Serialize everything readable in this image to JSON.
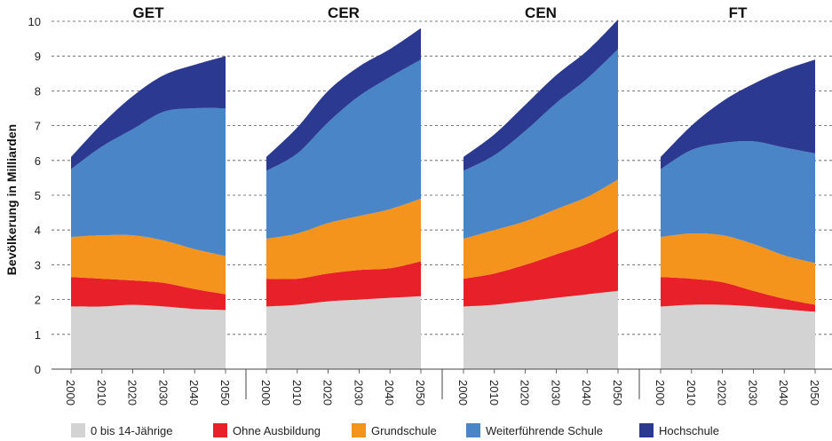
{
  "chart_data": {
    "type": "area",
    "ylabel": "Bevölkerung in Milliarden",
    "ylim": [
      0,
      10
    ],
    "yticks": [
      "0",
      "1",
      "2",
      "3",
      "4",
      "5",
      "6",
      "7",
      "8",
      "9",
      "10"
    ],
    "x": [
      "2000",
      "2010",
      "2020",
      "2030",
      "2040",
      "2050"
    ],
    "stacked": true,
    "grid": "horizontal dashed",
    "legend_position": "bottom",
    "series_names": [
      "0 bis 14-Jährige",
      "Ohne Ausbildung",
      "Grundschule",
      "Weiterführende Schule",
      "Hochschule"
    ],
    "colors": [
      "#d3d3d3",
      "#e8202a",
      "#f5941d",
      "#4a86c7",
      "#2b3990"
    ],
    "panels": [
      {
        "title": "GET",
        "series": [
          {
            "name": "0 bis 14-Jährige",
            "values": [
              1.8,
              1.8,
              1.85,
              1.8,
              1.73,
              1.7
            ]
          },
          {
            "name": "Ohne Ausbildung",
            "values": [
              0.85,
              0.8,
              0.7,
              0.68,
              0.57,
              0.45
            ]
          },
          {
            "name": "Grundschule",
            "values": [
              1.15,
              1.25,
              1.3,
              1.22,
              1.15,
              1.1
            ]
          },
          {
            "name": "Weiterführende Schule",
            "values": [
              1.95,
              2.55,
              3.05,
              3.7,
              4.05,
              4.25
            ]
          },
          {
            "name": "Hochschule",
            "values": [
              0.35,
              0.65,
              0.95,
              1.05,
              1.25,
              1.5
            ]
          }
        ]
      },
      {
        "title": "CER",
        "series": [
          {
            "name": "0 bis 14-Jährige",
            "values": [
              1.8,
              1.85,
              1.95,
              2.0,
              2.05,
              2.1
            ]
          },
          {
            "name": "Ohne Ausbildung",
            "values": [
              0.8,
              0.75,
              0.8,
              0.85,
              0.85,
              1.0
            ]
          },
          {
            "name": "Grundschule",
            "values": [
              1.15,
              1.3,
              1.45,
              1.55,
              1.7,
              1.8
            ]
          },
          {
            "name": "Weiterführende Schule",
            "values": [
              1.95,
              2.3,
              2.9,
              3.45,
              3.8,
              4.0
            ]
          },
          {
            "name": "Hochschule",
            "values": [
              0.4,
              0.75,
              0.9,
              0.85,
              0.8,
              0.9
            ]
          }
        ]
      },
      {
        "title": "CEN",
        "series": [
          {
            "name": "0 bis 14-Jährige",
            "values": [
              1.8,
              1.85,
              1.95,
              2.05,
              2.15,
              2.25
            ]
          },
          {
            "name": "Ohne Ausbildung",
            "values": [
              0.8,
              0.9,
              1.05,
              1.25,
              1.45,
              1.75
            ]
          },
          {
            "name": "Grundschule",
            "values": [
              1.15,
              1.25,
              1.25,
              1.3,
              1.35,
              1.45
            ]
          },
          {
            "name": "Weiterführende Schule",
            "values": [
              1.95,
              2.15,
              2.6,
              3.05,
              3.4,
              3.75
            ]
          },
          {
            "name": "Hochschule",
            "values": [
              0.4,
              0.6,
              0.75,
              0.8,
              0.8,
              0.85
            ]
          }
        ]
      },
      {
        "title": "FT",
        "series": [
          {
            "name": "0 bis 14-Jährige",
            "values": [
              1.8,
              1.85,
              1.85,
              1.8,
              1.72,
              1.65
            ]
          },
          {
            "name": "Ohne Ausbildung",
            "values": [
              0.85,
              0.75,
              0.65,
              0.45,
              0.3,
              0.2
            ]
          },
          {
            "name": "Grundschule",
            "values": [
              1.15,
              1.3,
              1.35,
              1.35,
              1.25,
              1.2
            ]
          },
          {
            "name": "Weiterführende Schule",
            "values": [
              1.95,
              2.4,
              2.65,
              2.95,
              3.1,
              3.15
            ]
          },
          {
            "name": "Hochschule",
            "values": [
              0.35,
              0.7,
              1.2,
              1.65,
              2.23,
              2.7
            ]
          }
        ]
      }
    ]
  }
}
